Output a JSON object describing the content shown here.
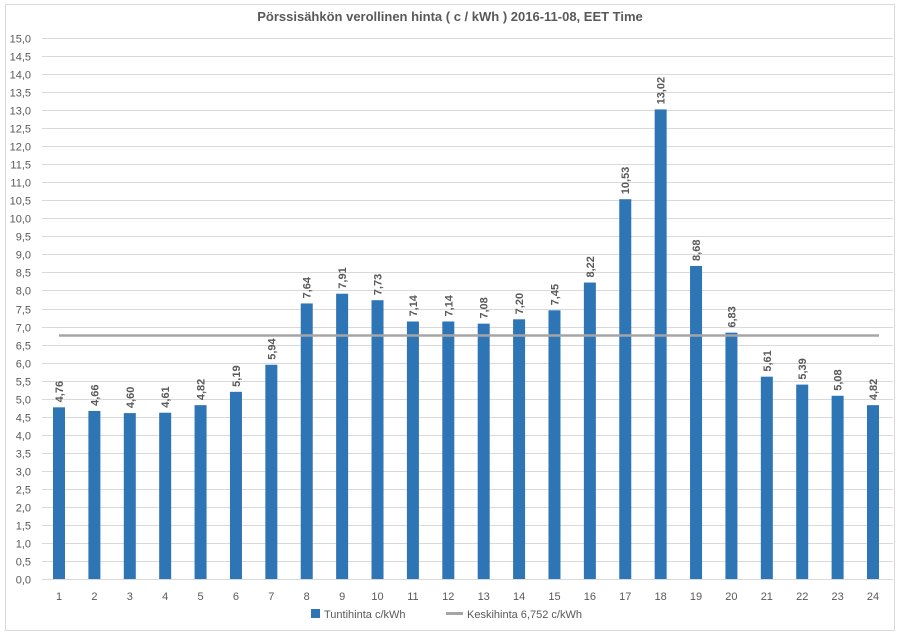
{
  "chart_data": {
    "type": "bar",
    "title": "Pörssisähkön verollinen hinta ( c / kWh ) 2016-11-08, EET Time",
    "xlabel": "",
    "ylabel": "",
    "ylim": [
      0,
      15
    ],
    "ytick_step": 0.5,
    "grid": true,
    "legend_position": "bottom",
    "categories": [
      "1",
      "2",
      "3",
      "4",
      "5",
      "6",
      "7",
      "8",
      "9",
      "10",
      "11",
      "12",
      "13",
      "14",
      "15",
      "16",
      "17",
      "18",
      "19",
      "20",
      "21",
      "22",
      "23",
      "24"
    ],
    "series": [
      {
        "name": "Tuntihinta c/kWh",
        "type": "bar",
        "color": "#2E75B6",
        "values": [
          4.76,
          4.66,
          4.6,
          4.61,
          4.82,
          5.19,
          5.94,
          7.64,
          7.91,
          7.73,
          7.14,
          7.14,
          7.08,
          7.2,
          7.45,
          8.22,
          10.53,
          13.02,
          8.68,
          6.83,
          5.61,
          5.39,
          5.08,
          4.82
        ],
        "labels": [
          "4,76",
          "4,66",
          "4,60",
          "4,61",
          "4,82",
          "5,19",
          "5,94",
          "7,64",
          "7,91",
          "7,73",
          "7,14",
          "7,14",
          "7,08",
          "7,20",
          "7,45",
          "8,22",
          "10,53",
          "13,02",
          "8,68",
          "6,83",
          "5,61",
          "5,39",
          "5,08",
          "4,82"
        ]
      },
      {
        "name": "Keskihinta 6,752 c/kWh",
        "type": "line",
        "color": "#A5A5A5",
        "value": 6.752
      }
    ]
  }
}
